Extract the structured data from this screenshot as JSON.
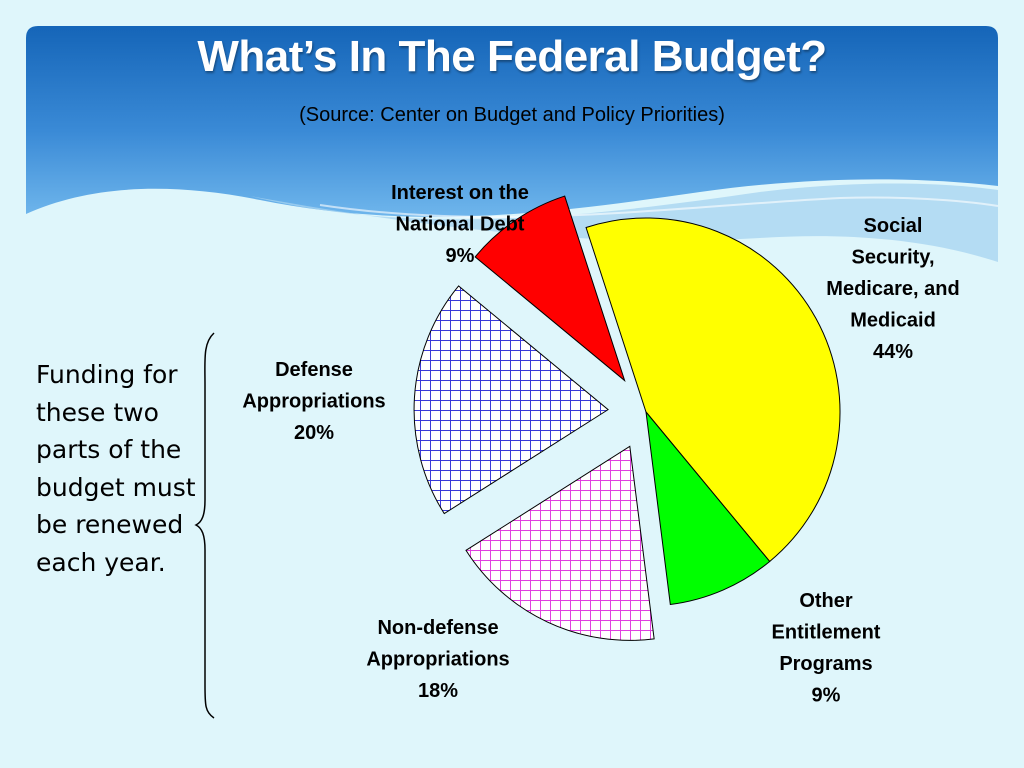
{
  "slide": {
    "title": "What’s In The Federal Budget?",
    "subtitle": "(Source: Center on Budget and Policy Priorities)",
    "note": "Funding for these two parts of the budget must be renewed each year.",
    "colors": {
      "background": "#dff6fb",
      "banner_top": "#1565b8",
      "banner_bottom": "#6fb6ec"
    }
  },
  "chart_data": {
    "type": "pie",
    "title": "",
    "slices": [
      {
        "name": "Social Security, Medicare, and Medicaid",
        "value": 44,
        "label": "44%",
        "color": "#ffff00",
        "pattern": "solid",
        "exploded": false,
        "label_lines": [
          "Social",
          "Security,",
          "Medicare, and",
          "Medicaid",
          "44%"
        ]
      },
      {
        "name": "Other Entitlement Programs",
        "value": 9,
        "label": "9%",
        "color": "#00ff00",
        "pattern": "solid",
        "exploded": false,
        "label_lines": [
          "Other",
          "Entitlement",
          "Programs",
          "9%"
        ]
      },
      {
        "name": "Non-defense Appropriations",
        "value": 18,
        "label": "18%",
        "color": "#e040e0",
        "pattern": "grid",
        "exploded": true,
        "label_lines": [
          "Non-defense",
          "Appropriations",
          "18%"
        ]
      },
      {
        "name": "Defense Appropriations",
        "value": 20,
        "label": "20%",
        "color": "#3a3ad8",
        "pattern": "grid",
        "exploded": true,
        "label_lines": [
          "Defense",
          "Appropriations",
          "20%"
        ]
      },
      {
        "name": "Interest on the National Debt",
        "value": 9,
        "label": "9%",
        "color": "#ff0000",
        "pattern": "solid",
        "exploded": true,
        "label_lines": [
          "Interest on the",
          "National Debt",
          "9%"
        ]
      }
    ],
    "legend": "none"
  }
}
